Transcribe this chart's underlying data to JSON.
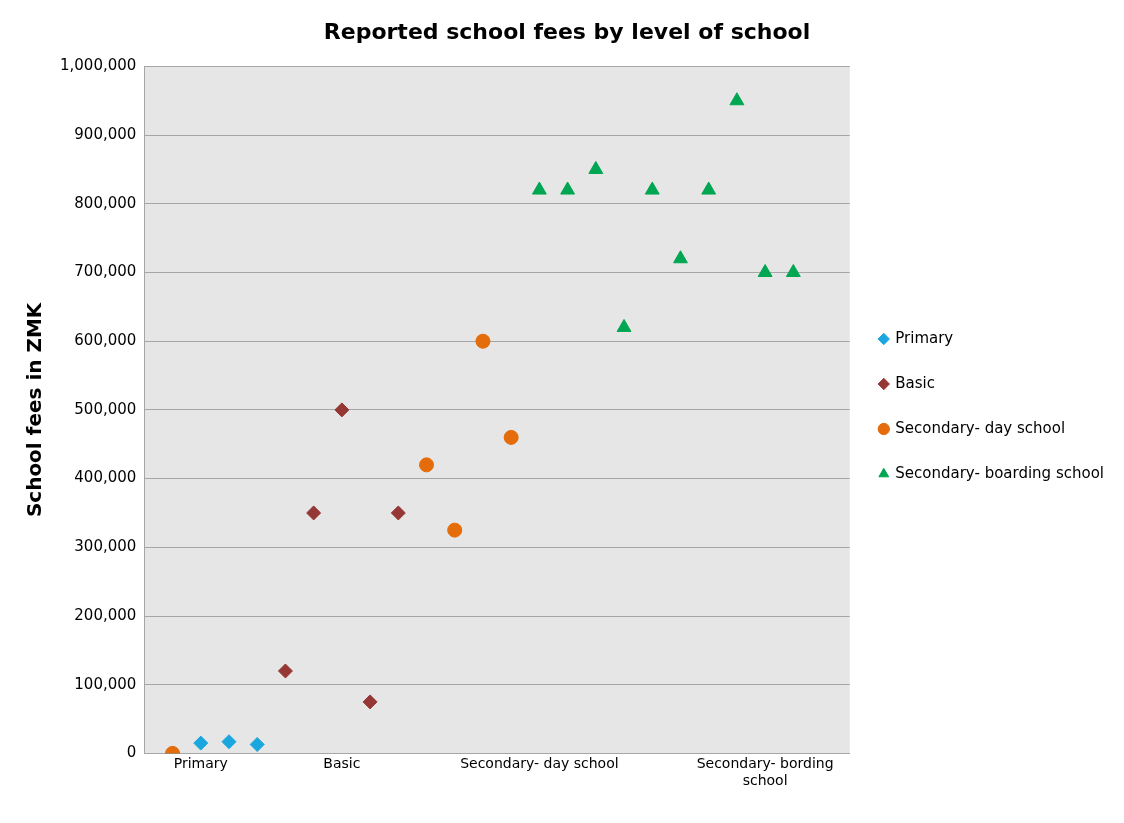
{
  "chart_data": {
    "type": "scatter",
    "title": "Reported school fees by level of school",
    "ylabel": "School fees in ZMK",
    "categories": [
      null,
      null,
      "Primary",
      null,
      null,
      null,
      null,
      "Basic",
      null,
      null,
      null,
      null,
      null,
      null,
      "Secondary- day school",
      null,
      null,
      null,
      null,
      null,
      null,
      null,
      "Secondary- bording school",
      null,
      null,
      null
    ],
    "ylim": [
      0,
      1000000
    ],
    "yticks": [
      {
        "value": 0,
        "label": "0"
      },
      {
        "value": 100000,
        "label": "100,000"
      },
      {
        "value": 200000,
        "label": "200,000"
      },
      {
        "value": 300000,
        "label": "300,000"
      },
      {
        "value": 400000,
        "label": "400,000"
      },
      {
        "value": 500000,
        "label": "500,000"
      },
      {
        "value": 600000,
        "label": "600,000"
      },
      {
        "value": 700000,
        "label": "700,000"
      },
      {
        "value": 800000,
        "label": "800,000"
      },
      {
        "value": 900000,
        "label": "900,000"
      },
      {
        "value": 1000000,
        "label": "1,000,000"
      }
    ],
    "grid": "y",
    "legend": "right",
    "series": [
      {
        "name": "Primary",
        "color": "#1aa7e0",
        "marker": "diamond",
        "values": [
          null,
          0,
          15000,
          17000,
          13000,
          null,
          null,
          null,
          null,
          null,
          null,
          null,
          null,
          null,
          null,
          null,
          null,
          null,
          null,
          null,
          null,
          null,
          null,
          null,
          null,
          null
        ]
      },
      {
        "name": "Basic",
        "color": "#953735",
        "marker": "diamond",
        "values": [
          null,
          null,
          null,
          null,
          null,
          120000,
          350000,
          500000,
          75000,
          350000,
          null,
          null,
          null,
          null,
          null,
          null,
          null,
          null,
          null,
          null,
          null,
          null,
          null,
          null,
          null,
          null
        ]
      },
      {
        "name": "Secondary- day school",
        "color": "#e46c0a",
        "marker": "circle",
        "values": [
          null,
          0,
          null,
          null,
          null,
          null,
          null,
          null,
          null,
          null,
          420000,
          325000,
          600000,
          460000,
          null,
          null,
          null,
          null,
          null,
          null,
          null,
          null,
          null,
          null,
          null,
          null
        ]
      },
      {
        "name": "Secondary- boarding school",
        "color": "#00a651",
        "marker": "triangle",
        "values": [
          null,
          null,
          null,
          null,
          null,
          null,
          null,
          null,
          null,
          null,
          null,
          null,
          null,
          null,
          820000,
          820000,
          850000,
          620000,
          820000,
          720000,
          820000,
          950000,
          700000,
          700000,
          null,
          null
        ]
      }
    ]
  }
}
